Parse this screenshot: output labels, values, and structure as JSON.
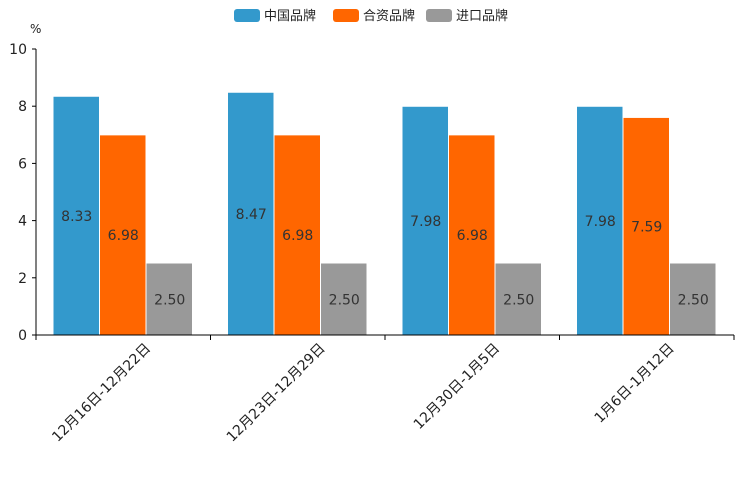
{
  "chart_data": {
    "type": "bar",
    "title": "",
    "xlabel": "",
    "ylabel": "",
    "unit": "%",
    "ylim": [
      0,
      10
    ],
    "yticks": [
      0,
      2,
      4,
      6,
      8,
      10
    ],
    "categories": [
      "12月16日-12月22日",
      "12月23日-12月29日",
      "12月30日-1月5日",
      "1月6日-1月12日"
    ],
    "series": [
      {
        "name": "中国品牌",
        "color": "#3399cc",
        "values": [
          8.33,
          8.47,
          7.98,
          7.98
        ],
        "labels": [
          "8.33",
          "8.47",
          "7.98",
          "7.98"
        ]
      },
      {
        "name": "合资品牌",
        "color": "#ff6600",
        "values": [
          6.98,
          6.98,
          6.98,
          7.59
        ],
        "labels": [
          "6.98",
          "6.98",
          "6.98",
          "7.59"
        ]
      },
      {
        "name": "进口品牌",
        "color": "#999999",
        "values": [
          2.5,
          2.5,
          2.5,
          2.5
        ],
        "labels": [
          "2.50",
          "2.50",
          "2.50",
          "2.50"
        ]
      }
    ],
    "legend_position": "top-center",
    "grid": false
  }
}
